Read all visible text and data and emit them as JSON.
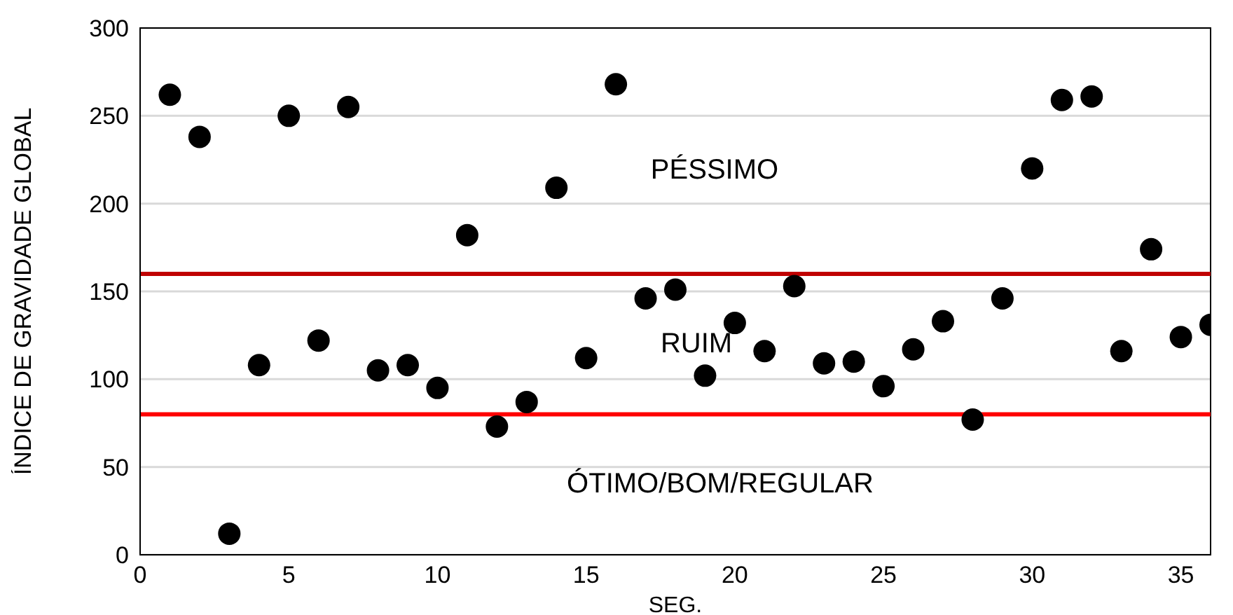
{
  "chart_data": {
    "type": "scatter",
    "xlabel": "SEG.",
    "ylabel": "ÍNDICE DE GRAVIDADE GLOBAL",
    "x": [
      1,
      2,
      3,
      4,
      5,
      6,
      7,
      8,
      9,
      10,
      11,
      12,
      13,
      14,
      15,
      16,
      17,
      18,
      19,
      20,
      21,
      22,
      23,
      24,
      25,
      26,
      27,
      28,
      29,
      30,
      31,
      32,
      33,
      34,
      35,
      36
    ],
    "series": [
      {
        "color": "#000000",
        "values": [
          262,
          238,
          12,
          108,
          250,
          122,
          255,
          105,
          108,
          95,
          182,
          73,
          87,
          209,
          112,
          268,
          146,
          151,
          102,
          132,
          116,
          153,
          109,
          110,
          96,
          117,
          133,
          77,
          146,
          220,
          259,
          261,
          116,
          174,
          124,
          131
        ]
      }
    ],
    "xlim": [
      0,
      36
    ],
    "xticks": [
      0,
      5,
      10,
      15,
      20,
      25,
      30,
      35
    ],
    "ylim": [
      0,
      300
    ],
    "yticks": [
      0,
      50,
      100,
      150,
      200,
      250,
      300
    ],
    "grid": "y",
    "marker": "circle",
    "ref_lines": [
      {
        "axis": "y",
        "value": 160,
        "color": "#c00000"
      },
      {
        "axis": "y",
        "value": 80,
        "color": "#ff0000"
      }
    ],
    "annotations": [
      "PÉSSIMO",
      "RUIM",
      "ÓTIMO/BOM/REGULAR"
    ]
  }
}
